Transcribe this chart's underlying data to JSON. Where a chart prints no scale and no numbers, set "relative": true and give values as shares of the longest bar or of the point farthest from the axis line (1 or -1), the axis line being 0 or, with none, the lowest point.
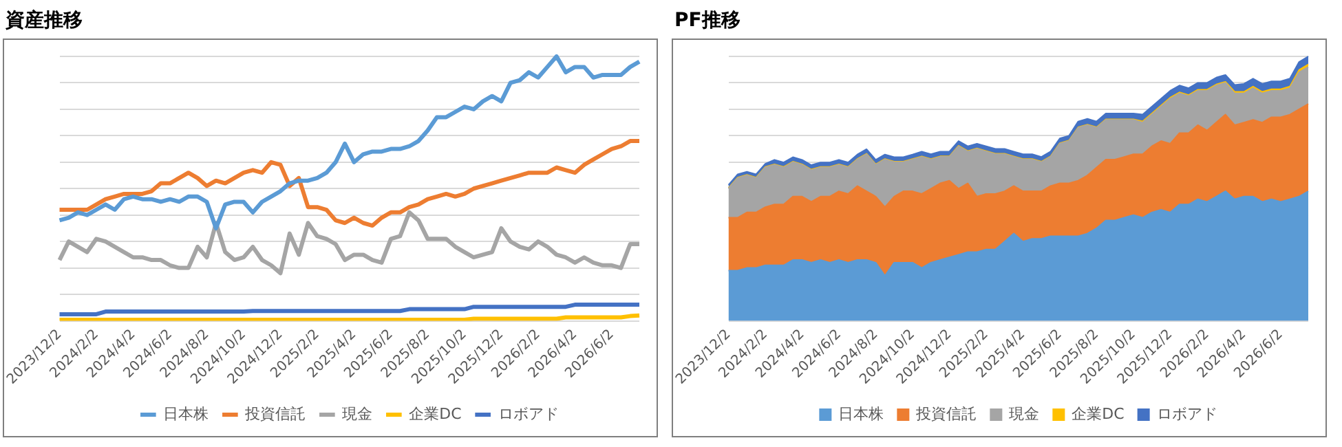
{
  "chart_data": [
    {
      "type": "line",
      "title": "資産推移",
      "relative": true,
      "grid": "y",
      "legend": "bottom",
      "categories": [
        "2023/12/2",
        null,
        null,
        null,
        "2024/2/2",
        null,
        null,
        null,
        "2024/4/2",
        null,
        null,
        null,
        "2024/6/2",
        null,
        null,
        null,
        "2024/8/2",
        null,
        null,
        null,
        "2024/10/2",
        null,
        null,
        null,
        "2024/12/2",
        null,
        null,
        null,
        "2025/2/2",
        null,
        null,
        null,
        "2025/4/2",
        null,
        null,
        null,
        "2025/6/2",
        null,
        null,
        null,
        "2025/8/2",
        null,
        null,
        null,
        "2025/10/2",
        null,
        null,
        null,
        "2025/12/2",
        null,
        null,
        null,
        "2026/2/2",
        null,
        null,
        null,
        "2026/4/2",
        null,
        null,
        null,
        "2026/6/2",
        null,
        null,
        null
      ],
      "series": [
        {
          "name": "日本株",
          "color": "#5b9bd5",
          "values": [
            0.38,
            0.39,
            0.41,
            0.4,
            0.42,
            0.44,
            0.42,
            0.46,
            0.47,
            0.46,
            0.46,
            0.45,
            0.46,
            0.45,
            0.47,
            0.47,
            0.45,
            0.35,
            0.44,
            0.45,
            0.45,
            0.41,
            0.45,
            0.47,
            0.49,
            0.52,
            0.53,
            0.53,
            0.54,
            0.56,
            0.6,
            0.67,
            0.6,
            0.63,
            0.64,
            0.64,
            0.65,
            0.65,
            0.66,
            0.68,
            0.72,
            0.77,
            0.77,
            0.79,
            0.81,
            0.8,
            0.83,
            0.85,
            0.83,
            0.9,
            0.91,
            0.94,
            0.92,
            0.96,
            1,
            0.94,
            0.96,
            0.96,
            0.92,
            0.93,
            0.93,
            0.93,
            0.96,
            0.98
          ]
        },
        {
          "name": "投資信託",
          "color": "#ed7d31",
          "values": [
            0.42,
            0.42,
            0.42,
            0.42,
            0.44,
            0.46,
            0.47,
            0.48,
            0.48,
            0.48,
            0.49,
            0.52,
            0.52,
            0.54,
            0.56,
            0.54,
            0.51,
            0.53,
            0.52,
            0.54,
            0.56,
            0.57,
            0.56,
            0.6,
            0.59,
            0.51,
            0.54,
            0.43,
            0.43,
            0.42,
            0.38,
            0.37,
            0.39,
            0.37,
            0.36,
            0.39,
            0.41,
            0.41,
            0.43,
            0.44,
            0.46,
            0.47,
            0.48,
            0.47,
            0.48,
            0.5,
            0.51,
            0.52,
            0.53,
            0.54,
            0.55,
            0.56,
            0.56,
            0.56,
            0.58,
            0.57,
            0.56,
            0.59,
            0.61,
            0.63,
            0.65,
            0.66,
            0.68,
            0.68
          ]
        },
        {
          "name": "現金",
          "color": "#a5a5a5",
          "values": [
            0.23,
            0.3,
            0.28,
            0.26,
            0.31,
            0.3,
            0.28,
            0.26,
            0.24,
            0.24,
            0.23,
            0.23,
            0.21,
            0.2,
            0.2,
            0.28,
            0.24,
            0.37,
            0.26,
            0.23,
            0.24,
            0.28,
            0.23,
            0.21,
            0.18,
            0.33,
            0.25,
            0.37,
            0.32,
            0.31,
            0.29,
            0.23,
            0.25,
            0.25,
            0.23,
            0.22,
            0.31,
            0.32,
            0.41,
            0.38,
            0.31,
            0.31,
            0.31,
            0.28,
            0.26,
            0.24,
            0.25,
            0.26,
            0.35,
            0.3,
            0.28,
            0.27,
            0.3,
            0.28,
            0.25,
            0.24,
            0.22,
            0.24,
            0.22,
            0.21,
            0.21,
            0.2,
            0.29,
            0.29
          ]
        },
        {
          "name": "企業DC",
          "color": "#ffc000",
          "values": [
            0.004,
            0.004,
            0.004,
            0.004,
            0.004,
            0.004,
            0.004,
            0.004,
            0.004,
            0.004,
            0.004,
            0.004,
            0.004,
            0.004,
            0.004,
            0.004,
            0.004,
            0.004,
            0.004,
            0.004,
            0.004,
            0.004,
            0.004,
            0.004,
            0.004,
            0.004,
            0.004,
            0.004,
            0.004,
            0.004,
            0.004,
            0.004,
            0.004,
            0.004,
            0.004,
            0.004,
            0.004,
            0.004,
            0.004,
            0.004,
            0.004,
            0.004,
            0.004,
            0.004,
            0.004,
            0.008,
            0.008,
            0.008,
            0.008,
            0.008,
            0.008,
            0.008,
            0.008,
            0.008,
            0.008,
            0.013,
            0.013,
            0.013,
            0.013,
            0.013,
            0.013,
            0.013,
            0.018,
            0.02
          ]
        },
        {
          "name": "ロボアド",
          "color": "#4472c4",
          "values": [
            0.025,
            0.025,
            0.025,
            0.025,
            0.025,
            0.035,
            0.035,
            0.035,
            0.035,
            0.035,
            0.035,
            0.035,
            0.035,
            0.035,
            0.035,
            0.035,
            0.035,
            0.035,
            0.035,
            0.035,
            0.035,
            0.037,
            0.037,
            0.037,
            0.037,
            0.037,
            0.037,
            0.037,
            0.037,
            0.037,
            0.037,
            0.037,
            0.037,
            0.037,
            0.037,
            0.037,
            0.037,
            0.037,
            0.044,
            0.044,
            0.044,
            0.044,
            0.044,
            0.044,
            0.044,
            0.053,
            0.053,
            0.053,
            0.053,
            0.053,
            0.053,
            0.053,
            0.053,
            0.053,
            0.053,
            0.053,
            0.061,
            0.061,
            0.061,
            0.061,
            0.061,
            0.061,
            0.061,
            0.061
          ]
        }
      ]
    },
    {
      "type": "area",
      "title": "PF推移",
      "relative": true,
      "stacked": true,
      "grid": "y",
      "legend": "bottom",
      "categories": [
        "2023/12/2",
        null,
        null,
        null,
        "2024/2/2",
        null,
        null,
        null,
        "2024/4/2",
        null,
        null,
        null,
        "2024/6/2",
        null,
        null,
        null,
        "2024/8/2",
        null,
        null,
        null,
        "2024/10/2",
        null,
        null,
        null,
        "2024/12/2",
        null,
        null,
        null,
        "2025/2/2",
        null,
        null,
        null,
        "2025/4/2",
        null,
        null,
        null,
        "2025/6/2",
        null,
        null,
        null,
        "2025/8/2",
        null,
        null,
        null,
        "2025/10/2",
        null,
        null,
        null,
        "2025/12/2",
        null,
        null,
        null,
        "2026/2/2",
        null,
        null,
        null,
        "2026/4/2",
        null,
        null,
        null,
        "2026/6/2",
        null,
        null,
        null
      ],
      "series": [
        {
          "name": "日本株",
          "color": "#5b9bd5",
          "values": [
            0.19,
            0.19,
            0.2,
            0.2,
            0.21,
            0.21,
            0.21,
            0.23,
            0.23,
            0.22,
            0.23,
            0.22,
            0.23,
            0.22,
            0.23,
            0.23,
            0.22,
            0.17,
            0.22,
            0.22,
            0.22,
            0.2,
            0.22,
            0.23,
            0.24,
            0.25,
            0.26,
            0.26,
            0.27,
            0.27,
            0.3,
            0.33,
            0.3,
            0.31,
            0.31,
            0.32,
            0.32,
            0.32,
            0.32,
            0.33,
            0.35,
            0.38,
            0.38,
            0.39,
            0.4,
            0.39,
            0.41,
            0.42,
            0.41,
            0.44,
            0.44,
            0.46,
            0.45,
            0.47,
            0.49,
            0.46,
            0.47,
            0.47,
            0.45,
            0.46,
            0.45,
            0.46,
            0.47,
            0.49
          ]
        },
        {
          "name": "投資信託",
          "color": "#ed7d31",
          "values": [
            0.2,
            0.2,
            0.21,
            0.21,
            0.22,
            0.23,
            0.23,
            0.24,
            0.24,
            0.23,
            0.24,
            0.25,
            0.26,
            0.26,
            0.28,
            0.26,
            0.25,
            0.26,
            0.25,
            0.27,
            0.27,
            0.28,
            0.28,
            0.29,
            0.29,
            0.25,
            0.26,
            0.21,
            0.21,
            0.21,
            0.19,
            0.18,
            0.19,
            0.18,
            0.18,
            0.19,
            0.2,
            0.2,
            0.21,
            0.22,
            0.23,
            0.23,
            0.23,
            0.23,
            0.23,
            0.24,
            0.25,
            0.26,
            0.26,
            0.27,
            0.27,
            0.28,
            0.27,
            0.28,
            0.29,
            0.28,
            0.28,
            0.29,
            0.3,
            0.31,
            0.32,
            0.32,
            0.33,
            0.33
          ]
        },
        {
          "name": "現金",
          "color": "#a5a5a5",
          "values": [
            0.11,
            0.15,
            0.14,
            0.13,
            0.15,
            0.15,
            0.14,
            0.13,
            0.12,
            0.12,
            0.11,
            0.11,
            0.1,
            0.1,
            0.1,
            0.14,
            0.12,
            0.18,
            0.13,
            0.11,
            0.12,
            0.14,
            0.11,
            0.1,
            0.09,
            0.16,
            0.12,
            0.18,
            0.16,
            0.15,
            0.14,
            0.11,
            0.12,
            0.12,
            0.11,
            0.11,
            0.15,
            0.16,
            0.2,
            0.19,
            0.15,
            0.15,
            0.15,
            0.14,
            0.13,
            0.12,
            0.12,
            0.13,
            0.17,
            0.15,
            0.14,
            0.13,
            0.15,
            0.14,
            0.12,
            0.12,
            0.11,
            0.12,
            0.11,
            0.1,
            0.1,
            0.1,
            0.14,
            0.14
          ]
        },
        {
          "name": "企業DC",
          "color": "#ffc000",
          "values": [
            0.002,
            0.002,
            0.002,
            0.002,
            0.002,
            0.002,
            0.002,
            0.002,
            0.002,
            0.002,
            0.002,
            0.002,
            0.002,
            0.002,
            0.002,
            0.002,
            0.002,
            0.002,
            0.002,
            0.002,
            0.002,
            0.002,
            0.002,
            0.002,
            0.002,
            0.002,
            0.002,
            0.002,
            0.002,
            0.002,
            0.002,
            0.002,
            0.002,
            0.002,
            0.002,
            0.002,
            0.002,
            0.002,
            0.002,
            0.002,
            0.002,
            0.002,
            0.002,
            0.002,
            0.002,
            0.004,
            0.004,
            0.004,
            0.004,
            0.004,
            0.004,
            0.004,
            0.004,
            0.004,
            0.004,
            0.006,
            0.006,
            0.006,
            0.006,
            0.006,
            0.006,
            0.006,
            0.009,
            0.01
          ]
        },
        {
          "name": "ロボアド",
          "color": "#4472c4",
          "values": [
            0.012,
            0.012,
            0.012,
            0.012,
            0.012,
            0.017,
            0.017,
            0.017,
            0.017,
            0.017,
            0.017,
            0.017,
            0.017,
            0.017,
            0.017,
            0.017,
            0.017,
            0.017,
            0.017,
            0.017,
            0.017,
            0.018,
            0.018,
            0.018,
            0.018,
            0.018,
            0.018,
            0.018,
            0.018,
            0.018,
            0.018,
            0.018,
            0.018,
            0.018,
            0.018,
            0.018,
            0.018,
            0.018,
            0.022,
            0.022,
            0.022,
            0.022,
            0.022,
            0.022,
            0.022,
            0.026,
            0.026,
            0.026,
            0.026,
            0.026,
            0.026,
            0.026,
            0.026,
            0.026,
            0.026,
            0.026,
            0.03,
            0.03,
            0.03,
            0.03,
            0.03,
            0.03,
            0.03,
            0.03
          ]
        }
      ]
    }
  ]
}
